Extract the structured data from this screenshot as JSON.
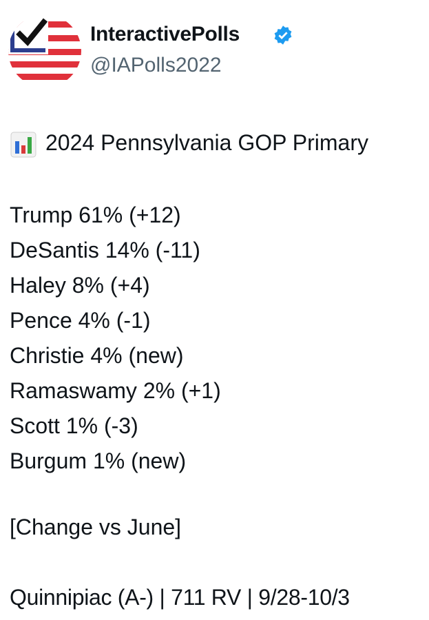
{
  "header": {
    "name": "InteractivePolls",
    "handle": "@IAPolls2022"
  },
  "post": {
    "title": "2024 Pennsylvania GOP Primary",
    "rows": [
      "Trump 61% (+12)",
      "DeSantis 14% (-11)",
      "Haley 8% (+4)",
      "Pence 4% (-1)",
      "Christie 4% (new)",
      "Ramaswamy 2% (+1)",
      "Scott 1% (-3)",
      "Burgum 1% (new)"
    ],
    "note": "[Change vs June]",
    "source": "Quinnipiac (A-) | 711 RV | 9/28-10/3"
  }
}
